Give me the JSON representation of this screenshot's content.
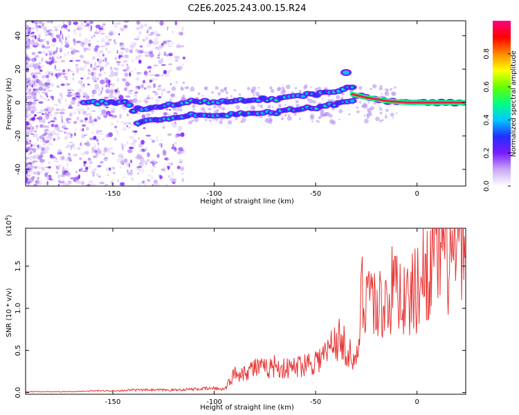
{
  "title": "C2E6.2025.243.00.15.R24",
  "chart_data": [
    {
      "type": "heatmap",
      "xlabel": "Height of straight line (km)",
      "ylabel": "Frequency (Hz)",
      "xlim": [
        -193,
        24
      ],
      "ylim": [
        -50,
        49
      ],
      "xticks": [
        -150,
        -100,
        -50,
        0
      ],
      "yticks": [
        -40,
        -20,
        0,
        20,
        40
      ],
      "colorbar": {
        "label": "Normalized spectral amplitude",
        "range": [
          0,
          1
        ],
        "ticks": [
          "0.0",
          "0.2",
          "0.4",
          "0.6",
          "0.8"
        ],
        "colormap": [
          "#ffffff",
          "#c9a8f5",
          "#7a1aff",
          "#2030ff",
          "#00c8ff",
          "#00ff80",
          "#66ff00",
          "#ffff00",
          "#ff8800",
          "#ff0000",
          "#ff0080"
        ]
      },
      "ridge": [
        {
          "x": -164,
          "y": 0
        },
        {
          "x": -150,
          "y": 0
        },
        {
          "x": -143,
          "y": 0
        },
        {
          "x": -138,
          "y": -8
        },
        {
          "x": -130,
          "y": -7
        },
        {
          "x": -120,
          "y": -5
        },
        {
          "x": -110,
          "y": -3
        },
        {
          "x": -100,
          "y": -4
        },
        {
          "x": -90,
          "y": -3
        },
        {
          "x": -80,
          "y": -2
        },
        {
          "x": -70,
          "y": -2
        },
        {
          "x": -60,
          "y": 0
        },
        {
          "x": -50,
          "y": 1
        },
        {
          "x": -40,
          "y": 3
        },
        {
          "x": -32,
          "y": 5
        },
        {
          "x": -25,
          "y": 3
        },
        {
          "x": -15,
          "y": 1
        },
        {
          "x": -5,
          "y": 0
        },
        {
          "x": 5,
          "y": 0
        },
        {
          "x": 15,
          "y": 0
        },
        {
          "x": 23,
          "y": 0
        }
      ],
      "features": [
        {
          "x": -35,
          "y": 18
        }
      ]
    },
    {
      "type": "line",
      "xlabel": "Height of straight line (km)",
      "ylabel": "SNR (10 * v/v)",
      "scale_label": "(x10",
      "scale_exponent": "4",
      "xlim": [
        -193,
        24
      ],
      "ylim": [
        -0.02,
        1.95
      ],
      "xticks": [
        -150,
        -100,
        -50,
        0
      ],
      "yticks": [
        "0.0",
        "0.5",
        "1.0",
        "1.5"
      ],
      "color": "#e83030",
      "series": [
        {
          "x": -193,
          "y": 0.01
        },
        {
          "x": -180,
          "y": 0.01
        },
        {
          "x": -170,
          "y": 0.01
        },
        {
          "x": -160,
          "y": 0.02
        },
        {
          "x": -150,
          "y": 0.02
        },
        {
          "x": -140,
          "y": 0.03
        },
        {
          "x": -130,
          "y": 0.03
        },
        {
          "x": -120,
          "y": 0.03
        },
        {
          "x": -110,
          "y": 0.04
        },
        {
          "x": -100,
          "y": 0.05
        },
        {
          "x": -95,
          "y": 0.04
        },
        {
          "x": -90,
          "y": 0.22
        },
        {
          "x": -85,
          "y": 0.25
        },
        {
          "x": -80,
          "y": 0.3
        },
        {
          "x": -75,
          "y": 0.28
        },
        {
          "x": -70,
          "y": 0.32
        },
        {
          "x": -65,
          "y": 0.28
        },
        {
          "x": -60,
          "y": 0.3
        },
        {
          "x": -55,
          "y": 0.35
        },
        {
          "x": -50,
          "y": 0.38
        },
        {
          "x": -45,
          "y": 0.45
        },
        {
          "x": -40,
          "y": 0.65
        },
        {
          "x": -35,
          "y": 0.55
        },
        {
          "x": -30,
          "y": 0.3
        },
        {
          "x": -27,
          "y": 1.2
        },
        {
          "x": -24,
          "y": 1.3
        },
        {
          "x": -20,
          "y": 1.0
        },
        {
          "x": -15,
          "y": 1.1
        },
        {
          "x": -10,
          "y": 1.3
        },
        {
          "x": -5,
          "y": 1.05
        },
        {
          "x": 0,
          "y": 1.25
        },
        {
          "x": 5,
          "y": 1.5
        },
        {
          "x": 10,
          "y": 1.7
        },
        {
          "x": 15,
          "y": 1.6
        },
        {
          "x": 20,
          "y": 1.65
        },
        {
          "x": 24,
          "y": 1.7
        }
      ]
    }
  ]
}
